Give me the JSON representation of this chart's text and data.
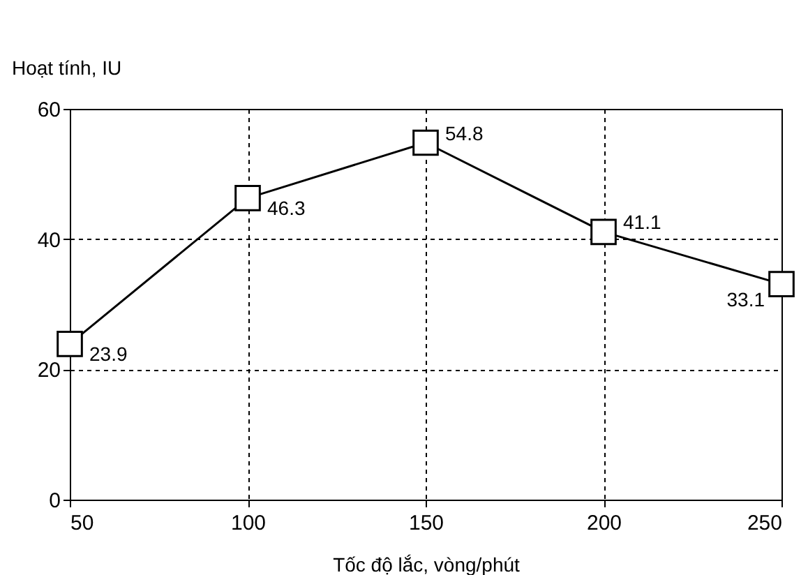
{
  "chart_data": {
    "type": "line",
    "xlabel": "Tốc độ lắc, vòng/phút",
    "ylabel": "Hoạt tính, IU",
    "x": [
      50,
      100,
      150,
      200,
      250
    ],
    "series": [
      {
        "color": "#000000",
        "values": [
          23.9,
          46.3,
          54.8,
          41.1,
          33.1
        ]
      }
    ],
    "xlim": [
      50,
      250
    ],
    "xticks": [
      50,
      100,
      150,
      200,
      250
    ],
    "ylim": [
      0,
      60
    ],
    "yticks": [
      0,
      20,
      40,
      60
    ],
    "grid": true,
    "marker": "square",
    "line_style": "solid",
    "data_labels": true
  }
}
